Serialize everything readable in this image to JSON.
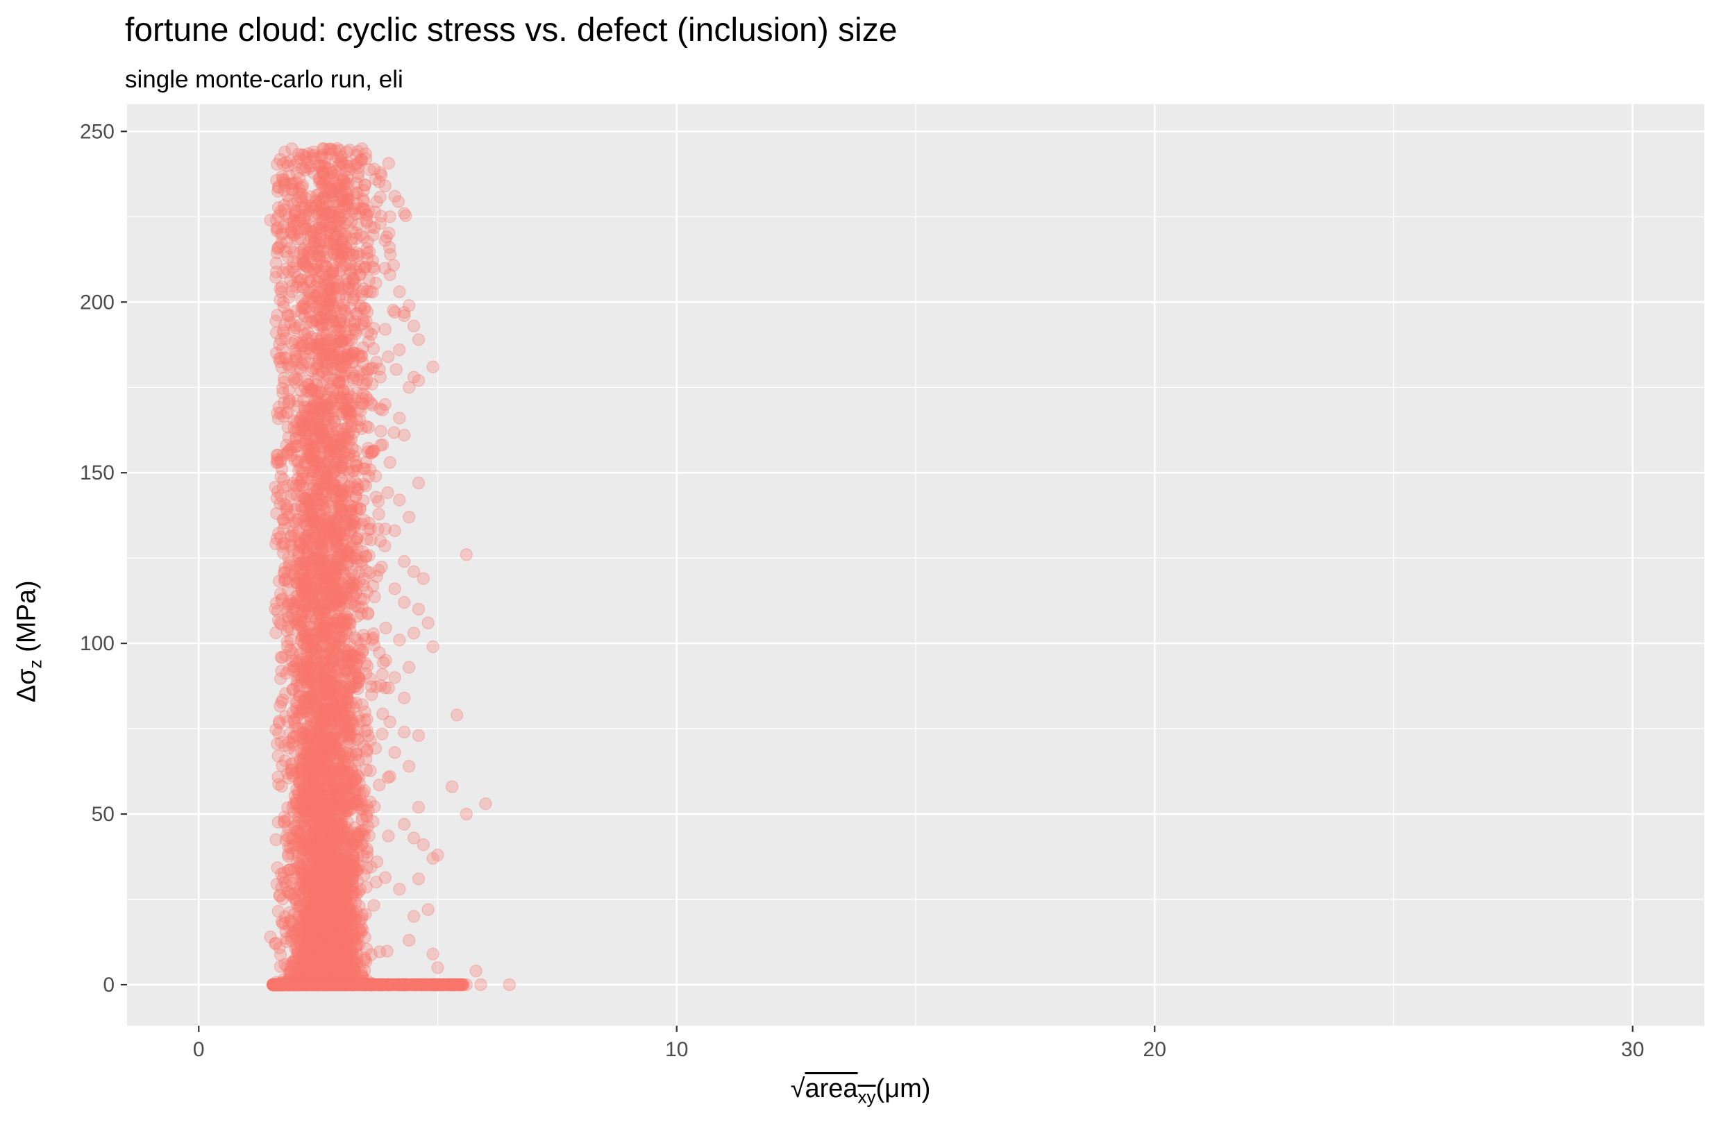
{
  "chart_data": {
    "type": "scatter",
    "title": "fortune cloud: cyclic stress vs. defect (inclusion) size",
    "subtitle": "single monte-carlo run, eli",
    "xlabel": {
      "radical": "√",
      "base": "area",
      "sub": "xy",
      "unit": "(μm)"
    },
    "ylabel": {
      "base": "Δσ",
      "sub": "z",
      "unit": " (MPa)"
    },
    "xlim": [
      -1.5,
      31.5
    ],
    "ylim": [
      -12,
      258
    ],
    "x_ticks": [
      0,
      10,
      20,
      30
    ],
    "y_ticks": [
      0,
      50,
      100,
      150,
      200,
      250
    ],
    "x_ticks_labels": [
      "0",
      "10",
      "20",
      "30"
    ],
    "y_ticks_labels": [
      "0",
      "50",
      "100",
      "150",
      "200",
      "250"
    ],
    "grid": true,
    "legend": "none",
    "colors": {
      "points": "#F8766D",
      "panel": "#EBEBEB",
      "grid": "#FFFFFF"
    },
    "series": [
      {
        "distribution": "dense cloud",
        "x_range": [
          1.5,
          6.5
        ],
        "y_range": [
          0,
          245
        ],
        "points": [
          [
            1.5,
            224
          ],
          [
            1.6,
            110
          ],
          [
            1.7,
            106
          ],
          [
            1.6,
            12
          ],
          [
            1.5,
            14
          ],
          [
            1.7,
            26
          ],
          [
            1.8,
            244
          ],
          [
            2.0,
            240
          ],
          [
            2.2,
            243
          ],
          [
            2.4,
            244
          ],
          [
            2.6,
            245
          ],
          [
            2.9,
            245
          ],
          [
            3.1,
            244
          ],
          [
            3.3,
            243
          ],
          [
            3.5,
            242
          ],
          [
            3.7,
            236
          ],
          [
            3.9,
            234
          ],
          [
            4.1,
            231
          ],
          [
            4.0,
            225
          ],
          [
            3.8,
            223
          ],
          [
            3.6,
            222
          ],
          [
            4.3,
            226
          ],
          [
            3.9,
            218
          ],
          [
            4.0,
            208
          ],
          [
            4.2,
            203
          ],
          [
            4.4,
            199
          ],
          [
            4.5,
            193
          ],
          [
            4.6,
            189
          ],
          [
            4.3,
            196
          ],
          [
            4.1,
            197
          ],
          [
            3.9,
            192
          ],
          [
            4.2,
            186
          ],
          [
            3.8,
            178
          ],
          [
            4.5,
            178
          ],
          [
            4.9,
            181
          ],
          [
            4.6,
            177
          ],
          [
            4.4,
            175
          ],
          [
            3.9,
            170
          ],
          [
            4.2,
            166
          ],
          [
            4.3,
            161
          ],
          [
            4.0,
            153
          ],
          [
            3.7,
            149
          ],
          [
            4.6,
            147
          ],
          [
            4.2,
            142
          ],
          [
            4.4,
            137
          ],
          [
            4.1,
            133
          ],
          [
            3.8,
            130
          ],
          [
            4.3,
            124
          ],
          [
            5.6,
            126
          ],
          [
            4.5,
            121
          ],
          [
            4.7,
            119
          ],
          [
            4.1,
            116
          ],
          [
            4.3,
            112
          ],
          [
            4.6,
            110
          ],
          [
            4.8,
            106
          ],
          [
            4.5,
            103
          ],
          [
            4.2,
            101
          ],
          [
            4.9,
            99
          ],
          [
            4.4,
            93
          ],
          [
            4.1,
            90
          ],
          [
            3.9,
            87
          ],
          [
            4.3,
            84
          ],
          [
            5.4,
            79
          ],
          [
            4.0,
            77
          ],
          [
            4.3,
            74
          ],
          [
            4.6,
            73
          ],
          [
            4.1,
            68
          ],
          [
            4.4,
            64
          ],
          [
            4.0,
            61
          ],
          [
            5.3,
            58
          ],
          [
            6.0,
            53
          ],
          [
            5.6,
            50
          ],
          [
            4.6,
            52
          ],
          [
            4.3,
            47
          ],
          [
            4.5,
            43
          ],
          [
            4.7,
            41
          ],
          [
            4.9,
            37
          ],
          [
            5.0,
            38
          ],
          [
            4.6,
            31
          ],
          [
            4.2,
            28
          ],
          [
            4.8,
            22
          ],
          [
            4.5,
            20
          ],
          [
            4.9,
            9
          ],
          [
            5.8,
            4
          ],
          [
            4.4,
            13
          ],
          [
            5.0,
            5
          ],
          [
            6.5,
            0
          ],
          [
            5.9,
            0
          ],
          [
            5.6,
            0
          ],
          [
            5.2,
            0
          ]
        ]
      }
    ]
  }
}
